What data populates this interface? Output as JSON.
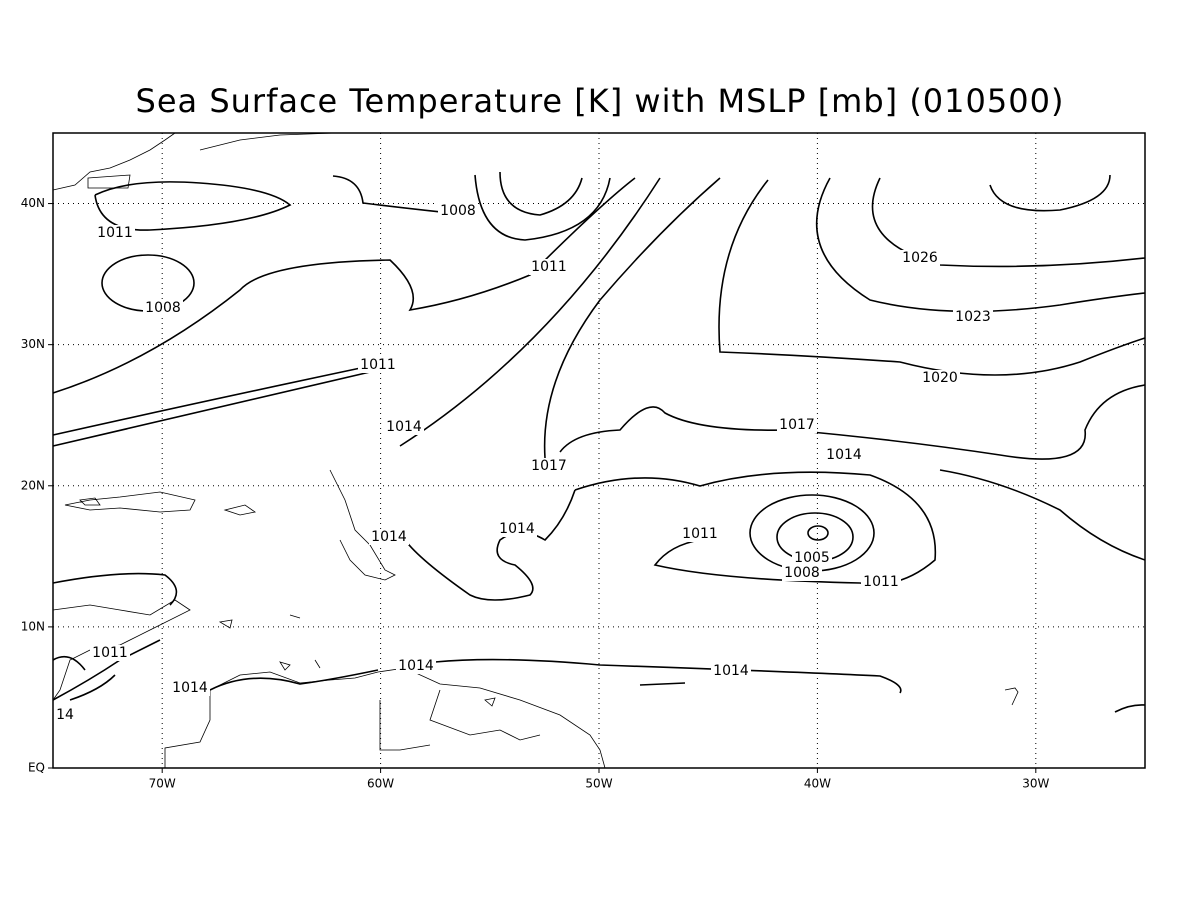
{
  "map": {
    "title": "Sea Surface Temperature [K] with MSLP [mb] (010500)",
    "xlim": [
      -75,
      -25
    ],
    "ylim": [
      0,
      45
    ],
    "xticks": [
      {
        "value": -70,
        "label": "70W"
      },
      {
        "value": -60,
        "label": "60W"
      },
      {
        "value": -50,
        "label": "50W"
      },
      {
        "value": -40,
        "label": "40W"
      },
      {
        "value": -30,
        "label": "30W"
      }
    ],
    "yticks": [
      {
        "value": 0,
        "label": "EQ"
      },
      {
        "value": 10,
        "label": "10N"
      },
      {
        "value": 20,
        "label": "20N"
      },
      {
        "value": 30,
        "label": "30N"
      },
      {
        "value": 40,
        "label": "40N"
      }
    ],
    "grid": true,
    "contour_labels": [
      "1011",
      "1008",
      "1008",
      "1011",
      "1026",
      "1023",
      "1011",
      "1020",
      "1014",
      "1017",
      "1017",
      "1014",
      "1014",
      "1011",
      "1014",
      "1005",
      "1008",
      "1011",
      "14",
      "1011",
      "1014",
      "1014",
      "1014"
    ]
  }
}
